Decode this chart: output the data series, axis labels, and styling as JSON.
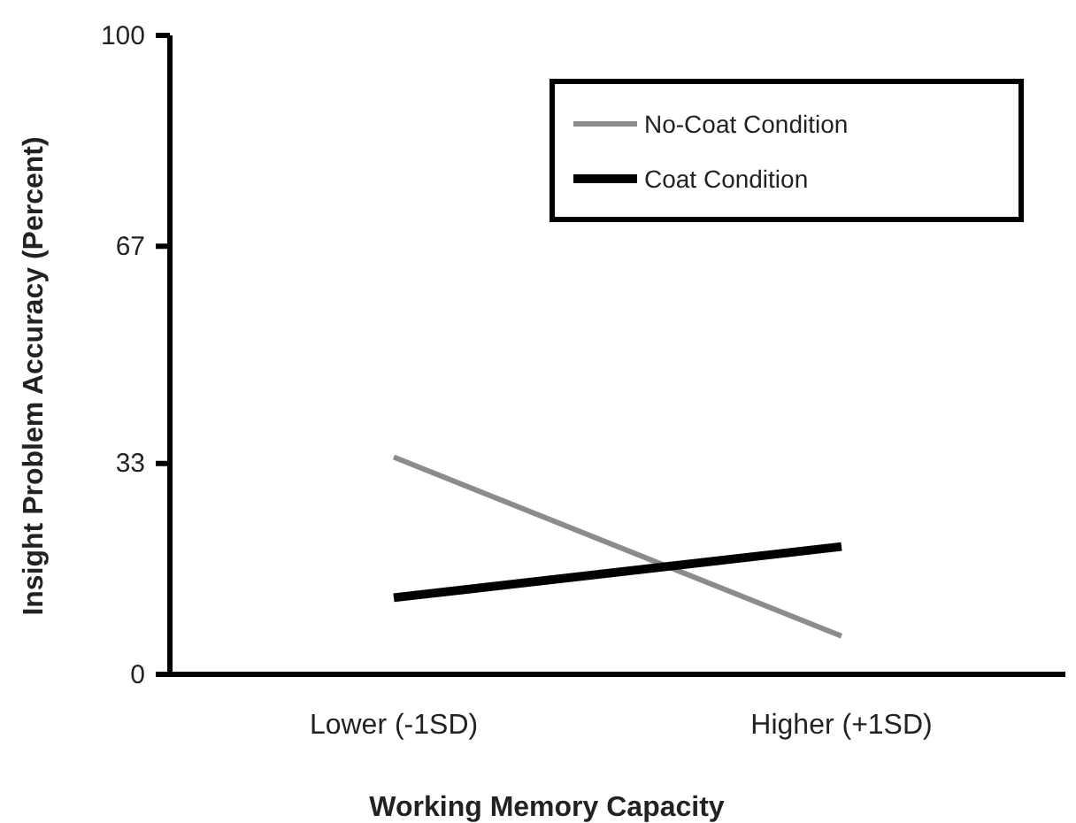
{
  "chart_data": {
    "type": "line",
    "xlabel": "Working Memory Capacity",
    "ylabel": "Insight Problem Accuracy (Percent)",
    "categories": [
      "Lower (-1SD)",
      "Higher (+1SD)"
    ],
    "series": [
      {
        "name": "No-Coat Condition",
        "color": "#8c8c8c",
        "values": [
          34,
          6
        ]
      },
      {
        "name": "Coat Condition",
        "color": "#000000",
        "values": [
          12,
          20
        ]
      }
    ],
    "ylim": [
      0,
      100
    ],
    "yticks": [
      0,
      33,
      67,
      100
    ],
    "grid": false,
    "legend": "top right",
    "marker": "none",
    "line_style": "solid"
  }
}
